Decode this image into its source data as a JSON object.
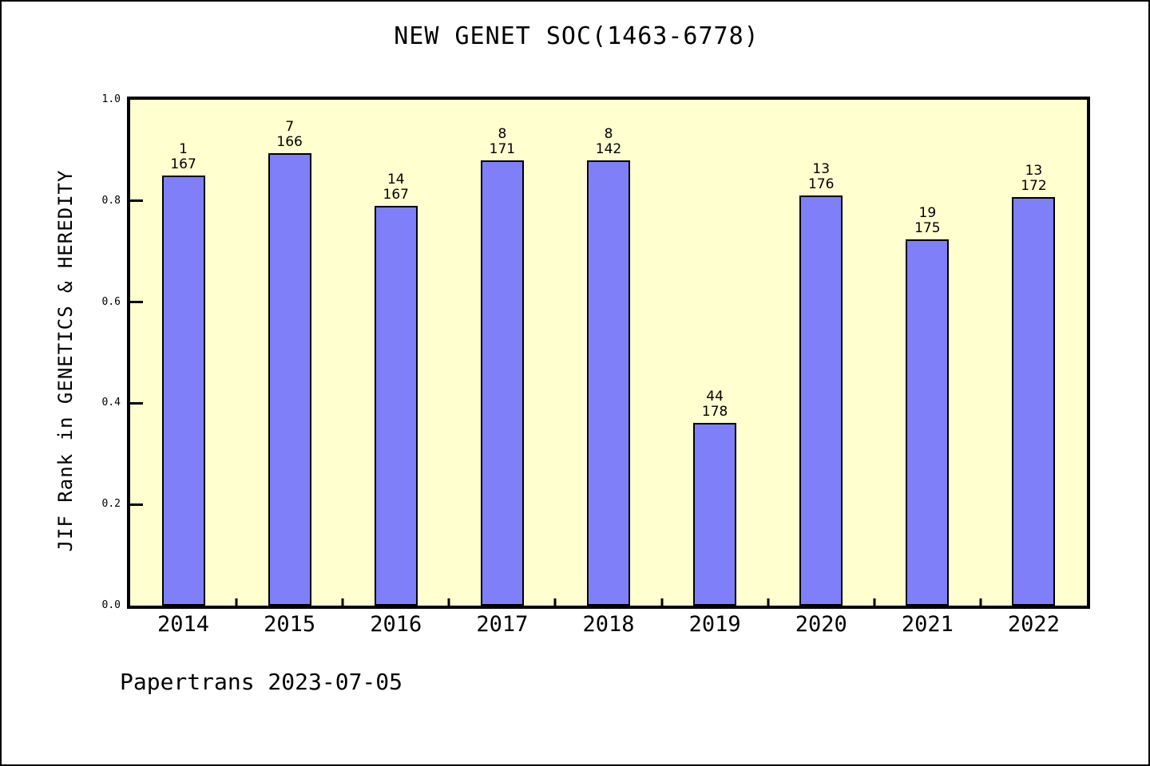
{
  "chart_data": {
    "type": "bar",
    "title": "NEW GENET SOC(1463-6778)",
    "xlabel": "",
    "ylabel": "JIF Rank in GENETICS & HEREDITY",
    "categories": [
      "2014",
      "2015",
      "2016",
      "2017",
      "2018",
      "2019",
      "2020",
      "2021",
      "2022"
    ],
    "values": [
      0.85,
      0.895,
      0.79,
      0.88,
      0.88,
      0.361,
      0.811,
      0.724,
      0.808
    ],
    "bar_labels": [
      {
        "rank": "1",
        "total": "167"
      },
      {
        "rank": "7",
        "total": "166"
      },
      {
        "rank": "14",
        "total": "167"
      },
      {
        "rank": "8",
        "total": "171"
      },
      {
        "rank": "8",
        "total": "142"
      },
      {
        "rank": "44",
        "total": "178"
      },
      {
        "rank": "13",
        "total": "176"
      },
      {
        "rank": "19",
        "total": "175"
      },
      {
        "rank": "13",
        "total": "172"
      }
    ],
    "yticks": [
      "0.0",
      "0.2",
      "0.4",
      "0.6",
      "0.8",
      "1.0"
    ],
    "ylim": [
      0,
      1
    ],
    "grid": false,
    "legend": null,
    "tick_style": "inward",
    "minor_ticks_at_category_boundaries": true,
    "colors": {
      "bar_fill": "#7f7ff9",
      "bar_edge": "#000000",
      "plot_bg": "#ffffd0",
      "axis": "#000000",
      "text": "#000000",
      "figure_bg": "#ffffff"
    }
  },
  "footer": {
    "text": "Papertrans 2023-07-05"
  }
}
